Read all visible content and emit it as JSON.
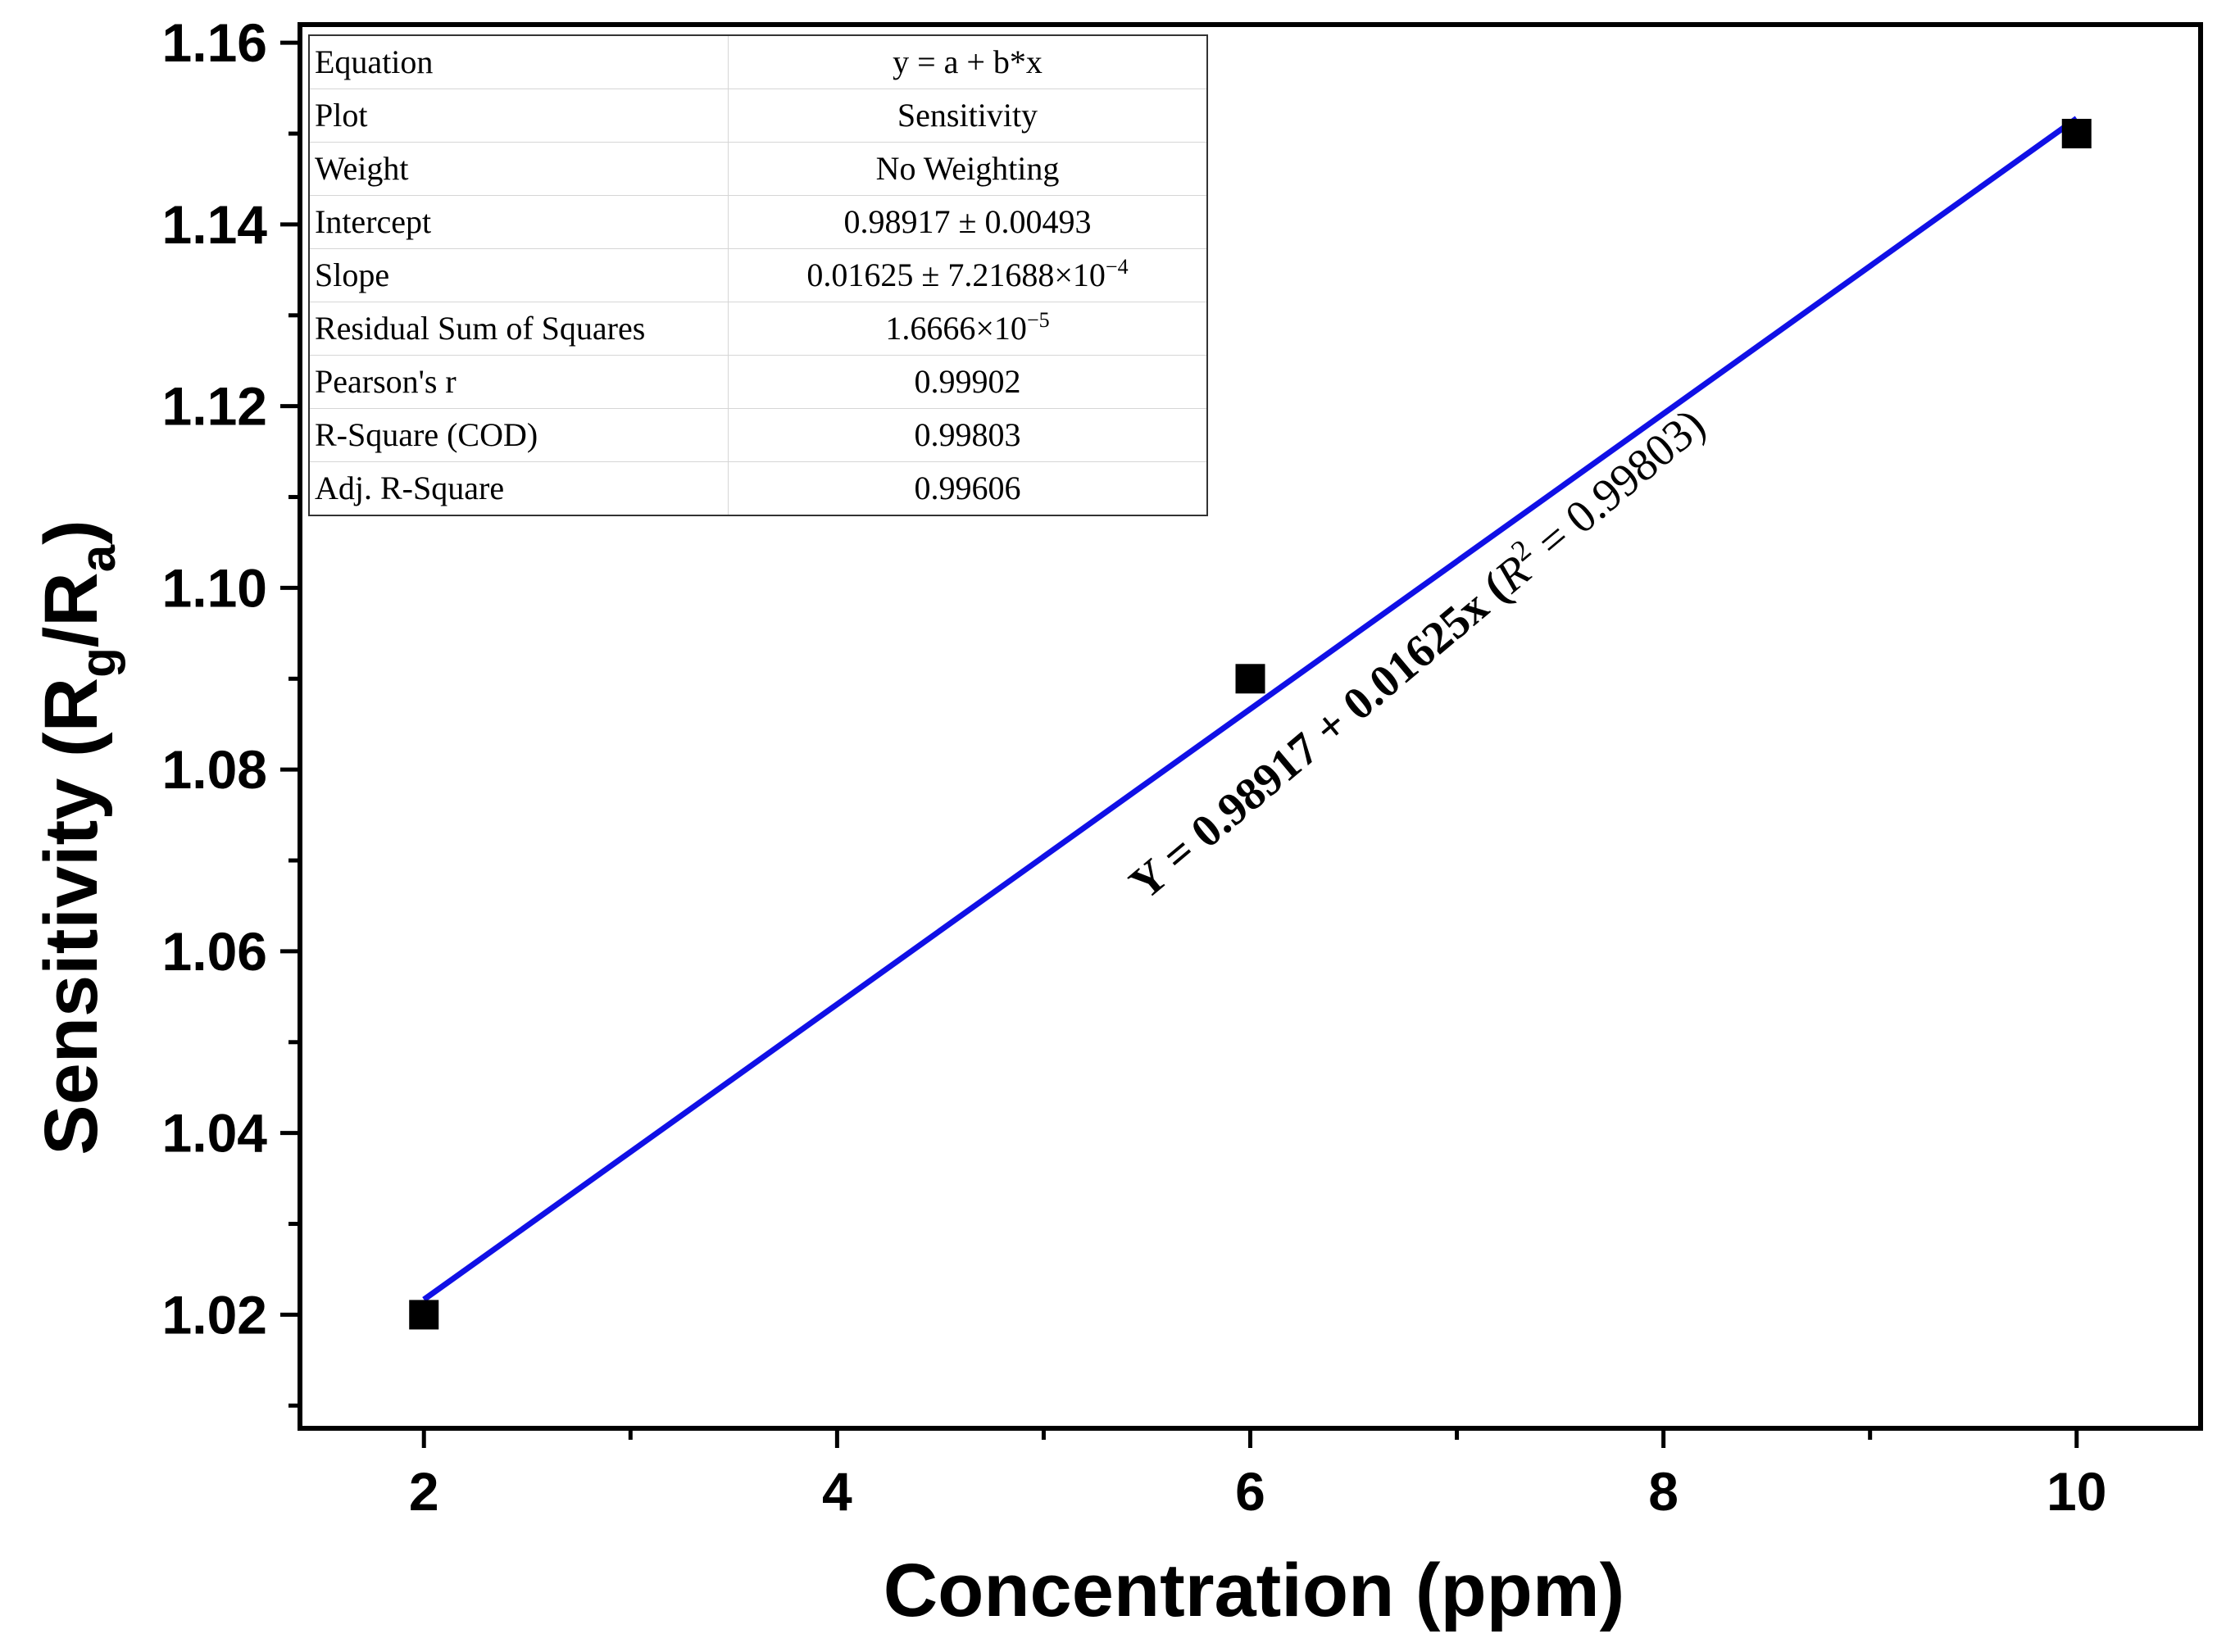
{
  "chart_data": {
    "type": "scatter",
    "xlabel": "Concentration (ppm)",
    "ylabel": {
      "main": "Sensitivity (R",
      "sub1": "g",
      "mid": "/R",
      "sub2": "a",
      "end": ")"
    },
    "xlim": [
      1.4,
      10.6
    ],
    "ylim": [
      1.0075,
      1.162
    ],
    "x_ticks": [
      2,
      4,
      6,
      8,
      10
    ],
    "x_tick_labels": [
      "2",
      "4",
      "6",
      "8",
      "10"
    ],
    "x_minor_ticks": [
      3,
      5,
      7,
      9
    ],
    "y_ticks": [
      1.02,
      1.04,
      1.06,
      1.08,
      1.1,
      1.12,
      1.14,
      1.16
    ],
    "y_tick_labels": [
      "1.02",
      "1.04",
      "1.06",
      "1.08",
      "1.10",
      "1.12",
      "1.14",
      "1.16"
    ],
    "y_minor_ticks": [
      1.01,
      1.03,
      1.05,
      1.07,
      1.09,
      1.11,
      1.13,
      1.15
    ],
    "grid": false,
    "series": [
      {
        "name": "Sensitivity",
        "type": "scatter",
        "marker": "square",
        "color": "#000000",
        "x": [
          2,
          6,
          10
        ],
        "y": [
          1.02,
          1.09,
          1.15
        ]
      },
      {
        "name": "Linear fit",
        "type": "line",
        "color": "#1010e6",
        "x": [
          2,
          10
        ],
        "y": [
          1.02167,
          1.15167
        ],
        "intercept": 0.98917,
        "slope": 0.01625
      }
    ],
    "annotation": {
      "eq_text": "Y = 0.98917 + 0.01625x (",
      "r_label": "R",
      "r_exp": "2",
      "r_tail": " = 0.99803)"
    },
    "stats_table": [
      {
        "key": "Equation",
        "value": "y = a + b*x"
      },
      {
        "key": "Plot",
        "value": "Sensitivity"
      },
      {
        "key": "Weight",
        "value": "No Weighting"
      },
      {
        "key": "Intercept",
        "value": "0.98917 ± 0.00493"
      },
      {
        "key": "Slope",
        "value": "0.01625 ± 7.21688×10",
        "exp": "−4"
      },
      {
        "key": "Residual Sum of Squares",
        "value": "1.6666×10",
        "exp": "−5"
      },
      {
        "key": "Pearson's r",
        "value": "0.99902"
      },
      {
        "key": "R-Square (COD)",
        "value": "0.99803"
      },
      {
        "key": "Adj. R-Square",
        "value": "0.99606"
      }
    ]
  }
}
